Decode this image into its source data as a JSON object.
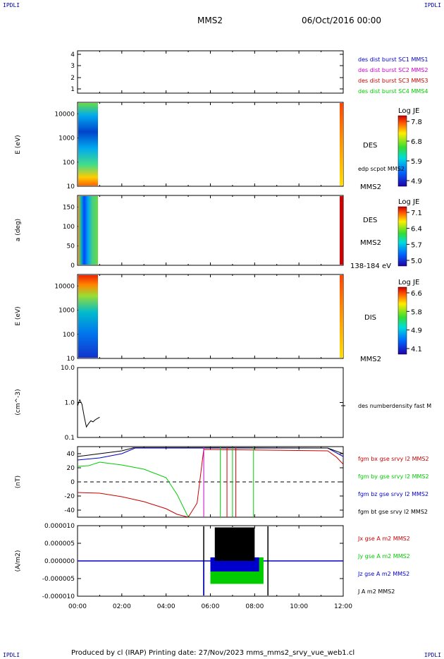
{
  "corners": {
    "tl": "IPDLI",
    "tr": "IPDLI",
    "bl": "IPDLI",
    "br": "IPDLI"
  },
  "header": {
    "title": "MMS2",
    "date": "06/Oct/2016 00:00"
  },
  "footer": {
    "text": "Produced by cl (IRAP)   Printing date: 27/Nov/2023   mms_mms2_srvy_vue_web1.cl"
  },
  "colors": {
    "mms1": "#0000cc",
    "mms2": "#cc00cc",
    "mms3": "#cc0000",
    "mms4": "#00cc00",
    "black": "#000000"
  },
  "time_axis": {
    "ticks": [
      "00:00",
      "02:00",
      "04:00",
      "06:00",
      "08:00",
      "10:00",
      "12:00"
    ]
  },
  "panels": {
    "p1": {
      "yticks": [
        "4",
        "3",
        "2",
        "1"
      ],
      "legend": [
        "des dist burst SC1 MMS1",
        "des dist burst SC2 MMS2",
        "des dist burst SC3 MMS3",
        "des dist burst SC4 MMS4"
      ]
    },
    "p2": {
      "ylabel": "E (eV)",
      "yticks": [
        "10000",
        "1000",
        "100",
        "10"
      ],
      "label": "DES",
      "label2": "edp scpot MMS2",
      "sc": "MMS2",
      "cbar": {
        "title": "Log JE",
        "ticks": [
          "7.8",
          "6.8",
          "5.9",
          "4.9"
        ]
      }
    },
    "p3": {
      "ylabel": "a (deg)",
      "yticks": [
        "150",
        "100",
        "50",
        "0"
      ],
      "label": "DES",
      "sc": "MMS2",
      "range": "138-184 eV",
      "cbar": {
        "title": "Log JE",
        "ticks": [
          "7.1",
          "6.4",
          "5.7",
          "5.0"
        ]
      }
    },
    "p4": {
      "ylabel": "E (eV)",
      "yticks": [
        "10000",
        "1000",
        "100",
        "10"
      ],
      "label": "DIS",
      "sc": "MMS2",
      "cbar": {
        "title": "Log JE",
        "ticks": [
          "6.6",
          "5.8",
          "4.9",
          "4.1"
        ]
      }
    },
    "p5": {
      "ylabel": "(cm^-3)",
      "yticks": [
        "10.0",
        "1.0",
        "0.1"
      ],
      "legend": "des numberdensity fast M"
    },
    "p6": {
      "ylabel": "(nT)",
      "yticks": [
        "40",
        "20",
        "0",
        "-20",
        "-40"
      ],
      "legend": [
        "fgm bx gse srvy l2 MMS2",
        "fgm by gse srvy l2 MMS2",
        "fgm bz gse srvy l2 MMS2",
        "fgm bt gse srvy l2 MMS2"
      ]
    },
    "p7": {
      "ylabel": "(A/m2)",
      "yticks": [
        "0.000010",
        "0.000005",
        "0.000000",
        "-0.000005",
        "-0.000010"
      ],
      "legend": [
        "Jx gse A m2 MMS2",
        "Jy gse A m2 MMS2",
        "Jz gse A m2 MMS2",
        "J A m2 MMS2"
      ]
    }
  },
  "chart_data": [
    {
      "type": "line",
      "title": "",
      "ylabel": "",
      "ylim": [
        0.5,
        4.5
      ],
      "series": []
    },
    {
      "type": "heatmap",
      "ylabel": "E (eV)",
      "ylim": [
        10,
        30000
      ],
      "colorbar_title": "Log JE",
      "colorbar_range": [
        4.9,
        7.8
      ],
      "data_time_ranges_h": [
        [
          0,
          0.95
        ],
        [
          11.85,
          12.0
        ]
      ]
    },
    {
      "type": "heatmap",
      "ylabel": "a (deg)",
      "ylim": [
        0,
        180
      ],
      "colorbar_title": "Log JE",
      "colorbar_range": [
        5.0,
        7.1
      ],
      "data_time_ranges_h": [
        [
          0,
          0.95
        ],
        [
          11.85,
          12.0
        ]
      ]
    },
    {
      "type": "heatmap",
      "ylabel": "E (eV)",
      "ylim": [
        10,
        30000
      ],
      "colorbar_title": "Log JE",
      "colorbar_range": [
        4.1,
        6.6
      ],
      "data_time_ranges_h": [
        [
          0,
          0.95
        ],
        [
          11.85,
          12.0
        ]
      ]
    },
    {
      "type": "line",
      "ylabel": "(cm^-3)",
      "ylim": [
        0.1,
        10
      ],
      "log": true,
      "series": [
        {
          "name": "des numberdensity fast M",
          "x": [
            0,
            0.1,
            0.2,
            0.3,
            0.4,
            0.5,
            0.6,
            0.7,
            0.8,
            0.9,
            1.0
          ],
          "y": [
            0.8,
            1.2,
            0.9,
            0.4,
            0.2,
            0.25,
            0.3,
            0.28,
            0.32,
            0.35,
            0.38
          ]
        }
      ]
    },
    {
      "type": "line",
      "ylabel": "(nT)",
      "ylim": [
        -50,
        50
      ],
      "series": [
        {
          "name": "fgm bx gse srvy l2 MMS2",
          "x": [
            0,
            1,
            2,
            3,
            4,
            4.5,
            5,
            5.4,
            5.7,
            11.3,
            11.7,
            12
          ],
          "y": [
            -15,
            -16,
            -21,
            -28,
            -38,
            -46,
            -50,
            -30,
            46,
            44,
            35,
            25
          ]
        },
        {
          "name": "fgm by gse srvy l2 MMS2",
          "x": [
            0,
            0.5,
            1,
            2,
            3,
            4,
            4.5,
            5
          ],
          "y": [
            22,
            23,
            28,
            24,
            18,
            6,
            -18,
            -50
          ]
        },
        {
          "name": "fgm bz gse srvy l2 MMS2",
          "x": [
            0,
            1,
            2,
            2.6,
            11.3,
            12
          ],
          "y": [
            31,
            34,
            40,
            48,
            48,
            36
          ]
        },
        {
          "name": "fgm bt gse srvy l2 MMS2",
          "x": [
            0,
            1,
            2,
            2.6,
            11.3,
            12
          ],
          "y": [
            36,
            40,
            44,
            49,
            48,
            40
          ]
        }
      ]
    },
    {
      "type": "line",
      "ylabel": "(A/m2)",
      "ylim": [
        -1e-05,
        1e-05
      ],
      "series": [
        {
          "name": "Jx gse A m2 MMS2",
          "x": [
            0,
            12
          ],
          "y": [
            0,
            0
          ]
        },
        {
          "name": "Jy gse A m2 MMS2",
          "x": [
            0,
            12
          ],
          "y": [
            0,
            0
          ]
        },
        {
          "name": "Jz gse A m2 MMS2",
          "x": [
            0,
            12
          ],
          "y": [
            0,
            0
          ]
        },
        {
          "name": "J A m2 MMS2",
          "x": [
            0,
            12
          ],
          "y": [
            0,
            0
          ]
        }
      ]
    }
  ]
}
